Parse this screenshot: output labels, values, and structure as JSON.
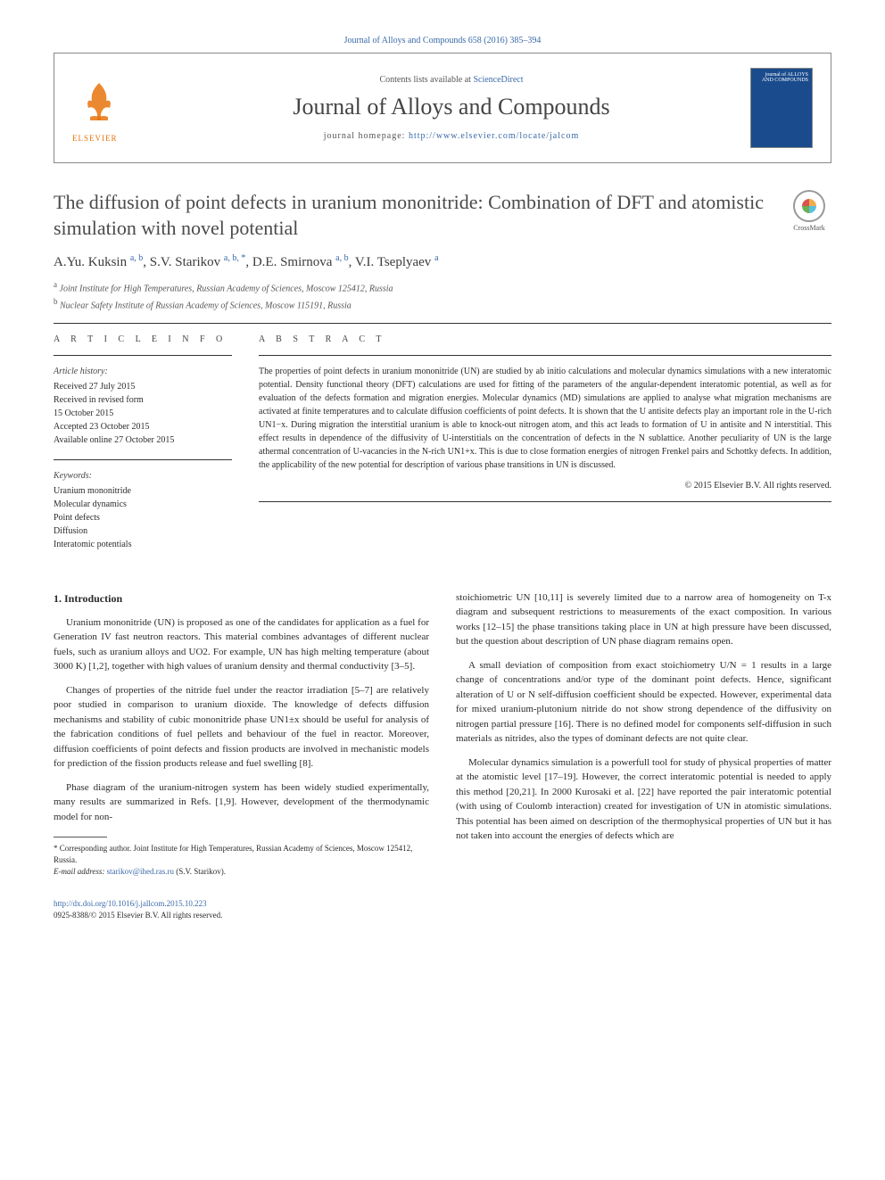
{
  "journal_ref": "Journal of Alloys and Compounds 658 (2016) 385–394",
  "header": {
    "contents_prefix": "Contents lists available at ",
    "contents_link": "ScienceDirect",
    "journal_name": "Journal of Alloys and Compounds",
    "homepage_prefix": "journal homepage: ",
    "homepage_url": "http://www.elsevier.com/locate/jalcom",
    "elsevier_label": "ELSEVIER",
    "cover_text": "journal of ALLOYS AND COMPOUNDS"
  },
  "crossmark_label": "CrossMark",
  "title": "The diffusion of point defects in uranium mononitride: Combination of DFT and atomistic simulation with novel potential",
  "authors_html": "A.Yu. Kuksin <sup>a, b</sup>, S.V. Starikov <sup>a, b, *</sup>, D.E. Smirnova <sup>a, b</sup>, V.I. Tseplyaev <sup>a</sup>",
  "affiliations": [
    "Joint Institute for High Temperatures, Russian Academy of Sciences, Moscow 125412, Russia",
    "Nuclear Safety Institute of Russian Academy of Sciences, Moscow 115191, Russia"
  ],
  "aff_markers": [
    "a",
    "b"
  ],
  "info": {
    "heading": "A R T I C L E   I N F O",
    "history_label": "Article history:",
    "history": [
      "Received 27 July 2015",
      "Received in revised form",
      "15 October 2015",
      "Accepted 23 October 2015",
      "Available online 27 October 2015"
    ],
    "keywords_label": "Keywords:",
    "keywords": [
      "Uranium mononitride",
      "Molecular dynamics",
      "Point defects",
      "Diffusion",
      "Interatomic potentials"
    ]
  },
  "abstract": {
    "heading": "A B S T R A C T",
    "text": "The properties of point defects in uranium mononitride (UN) are studied by ab initio calculations and molecular dynamics simulations with a new interatomic potential. Density functional theory (DFT) calculations are used for fitting of the parameters of the angular-dependent interatomic potential, as well as for evaluation of the defects formation and migration energies. Molecular dynamics (MD) simulations are applied to analyse what migration mechanisms are activated at finite temperatures and to calculate diffusion coefficients of point defects. It is shown that the U antisite defects play an important role in the U-rich UN1−x. During migration the interstitial uranium is able to knock-out nitrogen atom, and this act leads to formation of U in antisite and N interstitial. This effect results in dependence of the diffusivity of U-interstitials on the concentration of defects in the N sublattice. Another peculiarity of UN is the large athermal concentration of U-vacancies in the N-rich UN1+x. This is due to close formation energies of nitrogen Frenkel pairs and Schottky defects. In addition, the applicability of the new potential for description of various phase transitions in UN is discussed.",
    "copyright": "© 2015 Elsevier B.V. All rights reserved."
  },
  "body": {
    "section_number": "1.",
    "section_title": "Introduction",
    "left_paragraphs": [
      "Uranium mononitride (UN) is proposed as one of the candidates for application as a fuel for Generation IV fast neutron reactors. This material combines advantages of different nuclear fuels, such as uranium alloys and UO2. For example, UN has high melting temperature (about 3000 K) [1,2], together with high values of uranium density and thermal conductivity [3–5].",
      "Changes of properties of the nitride fuel under the reactor irradiation [5–7] are relatively poor studied in comparison to uranium dioxide. The knowledge of defects diffusion mechanisms and stability of cubic mononitride phase UN1±x should be useful for analysis of the fabrication conditions of fuel pellets and behaviour of the fuel in reactor. Moreover, diffusion coefficients of point defects and fission products are involved in mechanistic models for prediction of the fission products release and fuel swelling [8].",
      "Phase diagram of the uranium-nitrogen system has been widely studied experimentally, many results are summarized in Refs. [1,9]. However, development of the thermodynamic model for non-"
    ],
    "right_paragraphs": [
      "stoichiometric UN [10,11] is severely limited due to a narrow area of homogeneity on T-x diagram and subsequent restrictions to measurements of the exact composition. In various works [12–15] the phase transitions taking place in UN at high pressure have been discussed, but the question about description of UN phase diagram remains open.",
      "A small deviation of composition from exact stoichiometry U/N = 1 results in a large change of concentrations and/or type of the dominant point defects. Hence, significant alteration of U or N self-diffusion coefficient should be expected. However, experimental data for mixed uranium-plutonium nitride do not show strong dependence of the diffusivity on nitrogen partial pressure [16]. There is no defined model for components self-diffusion in such materials as nitrides, also the types of dominant defects are not quite clear.",
      "Molecular dynamics simulation is a powerfull tool for study of physical properties of matter at the atomistic level [17–19]. However, the correct interatomic potential is needed to apply this method [20,21]. In 2000 Kurosaki et al. [22] have reported the pair interatomic potential (with using of Coulomb interaction) created for investigation of UN in atomistic simulations. This potential has been aimed on description of the thermophysical properties of UN but it has not taken into account the energies of defects which are"
    ]
  },
  "footnotes": {
    "corresponding": "* Corresponding author. Joint Institute for High Temperatures, Russian Academy of Sciences, Moscow 125412, Russia.",
    "email_label": "E-mail address:",
    "email": "starikov@ihed.ras.ru",
    "email_author": "(S.V. Starikov)."
  },
  "footer": {
    "doi": "http://dx.doi.org/10.1016/j.jallcom.2015.10.223",
    "issn_line": "0925-8388/© 2015 Elsevier B.V. All rights reserved."
  },
  "colors": {
    "link": "#3a6aa8",
    "elsevier_orange": "#e8740e",
    "journal_blue": "#1a4b8c"
  }
}
